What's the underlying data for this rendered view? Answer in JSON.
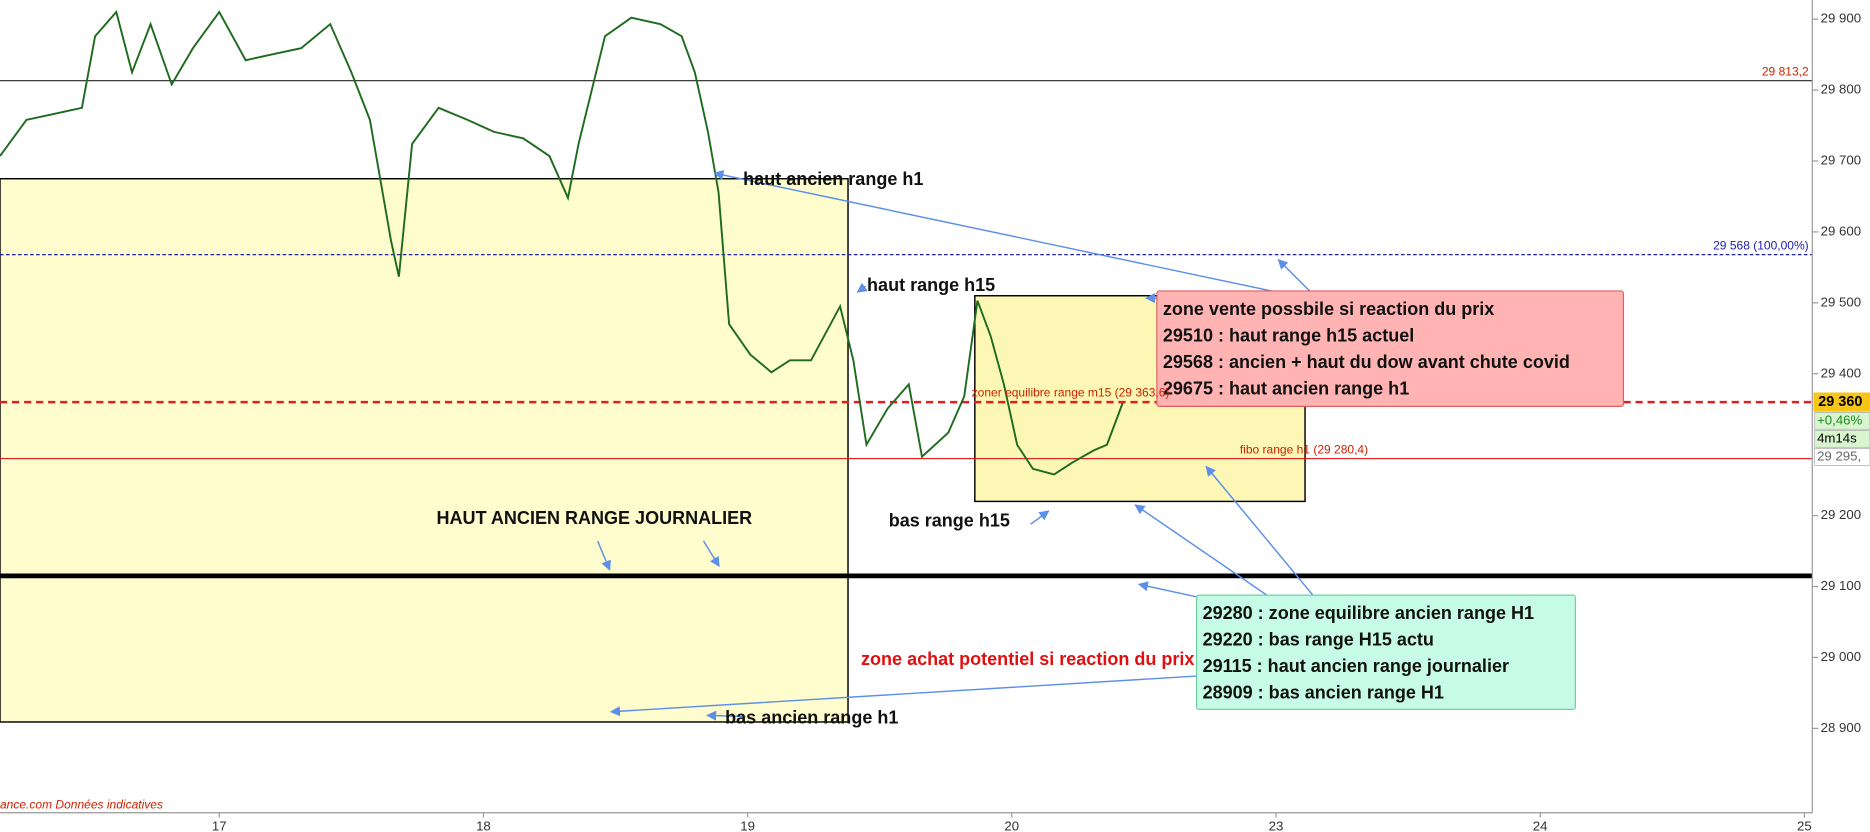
{
  "chart_data": {
    "type": "line",
    "xlim": [
      16.17,
      23.03
    ],
    "xticks": [
      17,
      18,
      19,
      20,
      {
        "value": 21,
        "label": "23"
      },
      {
        "value": 22,
        "label": "24"
      },
      {
        "value": 23,
        "label": "25"
      }
    ],
    "ylim": [
      28781,
      29927
    ],
    "yticks": [
      {
        "value": 28900,
        "label": "28 900"
      },
      {
        "value": 29000,
        "label": "29 000"
      },
      {
        "value": 29100,
        "label": "29 100"
      },
      {
        "value": 29200,
        "label": "29 200"
      },
      {
        "value": 29400,
        "label": "29 400"
      },
      {
        "value": 29500,
        "label": "29 500"
      },
      {
        "value": 29600,
        "label": "29 600"
      },
      {
        "value": 29700,
        "label": "29 700"
      },
      {
        "value": 29800,
        "label": "29 800"
      },
      {
        "value": 29900,
        "label": "29 900"
      }
    ],
    "series": [
      {
        "color": "#1f6b1f",
        "x": [
          16.17,
          16.27,
          16.37,
          16.48,
          16.53,
          16.61,
          16.67,
          16.74,
          16.82,
          16.9,
          17,
          17.1,
          17.21,
          17.31,
          17.42,
          17.5,
          17.57,
          17.65,
          17.68,
          17.73,
          17.83,
          17.94,
          18.04,
          18.15,
          18.25,
          18.32,
          18.36,
          18.46,
          18.56,
          18.67,
          18.75,
          18.8,
          18.85,
          18.89,
          18.93,
          19.01,
          19.09,
          19.16,
          19.24,
          19.35,
          19.4,
          19.45,
          19.53,
          19.61,
          19.66,
          19.76,
          19.82,
          19.87,
          19.92,
          19.97,
          20.02,
          20.08,
          20.16,
          20.23,
          20.31,
          20.36,
          20.42
        ],
        "values": [
          29707,
          29758,
          29766,
          29775,
          29876,
          29910,
          29825,
          29893,
          29808,
          29859,
          29910,
          29842,
          29851,
          29859,
          29893,
          29825,
          29758,
          29588,
          29537,
          29724,
          29775,
          29758,
          29741,
          29732,
          29707,
          29648,
          29724,
          29876,
          29902,
          29893,
          29876,
          29825,
          29741,
          29656,
          29470,
          29427,
          29402,
          29419,
          29419,
          29495,
          29419,
          29300,
          29351,
          29385,
          29283,
          29317,
          29368,
          29503,
          29453,
          29385,
          29300,
          29266,
          29258,
          29275,
          29292,
          29300,
          29359
        ]
      }
    ],
    "hlines": [
      {
        "value": 29813.2,
        "label": "29 813,2",
        "color": "#cc2200",
        "line_color": "#222222",
        "width": 1
      },
      {
        "value": 29568,
        "label": "29 568 (100,00%)",
        "color": "#2020aa",
        "line_color": "#2020aa",
        "dash": true,
        "width": 1
      },
      {
        "value": 29360,
        "label": "29 360",
        "color": "#000000",
        "line_color": "#e02020",
        "dash": true,
        "width": 2
      },
      {
        "value": 29280.4,
        "label": "fibo range h1 (29 280,4)",
        "color": "#cc2200",
        "line_color": "#e02020",
        "width": 1
      },
      {
        "value": 29115,
        "line_color": "#000000",
        "width": 4
      }
    ],
    "zones": [
      {
        "x0": 16.17,
        "x1": 19.38,
        "top": 29675,
        "bottom": 28909
      },
      {
        "x0": 19.86,
        "x1": 21.11,
        "top": 29510,
        "bottom": 29220
      }
    ],
    "price_tags": [
      "+0,46%",
      "4m14s",
      "29 295,"
    ],
    "annotations": [
      "haut ancien range h1",
      "haut range h15",
      "bas range h15",
      "HAUT ANCIEN  RANGE JOURNALIER",
      "bas  ancien range h1",
      "zone achat potentiel si reaction du prix",
      "zoner equilibre range m15 (29 363,6)",
      "ance.com Données indicatives"
    ],
    "notes": [
      {
        "color": "#ffb3b3",
        "border": "#e06060",
        "lines": [
          "zone vente possbile si reaction du prix",
          "29510 : haut range h15 actuel",
          "29568 : ancien + haut du dow avant chute covid",
          "29675 : haut ancien range h1"
        ]
      },
      {
        "color": "#c6fbe8",
        "border": "#70d0a0",
        "lines": [
          "29280 : zone equilibre ancien range H1",
          "29220 :  bas range H15 actu",
          "29115 : haut ancien range journalier",
          "28909 : bas ancien range H1"
        ]
      }
    ]
  }
}
